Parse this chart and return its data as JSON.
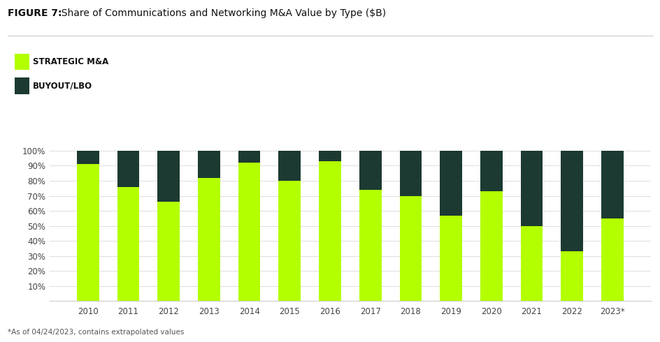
{
  "title_bold": "FIGURE 7:",
  "title_regular": "  Share of Communications and Networking M&A Value by Type ($B)",
  "years": [
    "2010",
    "2011",
    "2012",
    "2013",
    "2014",
    "2015",
    "2016",
    "2017",
    "2018",
    "2019",
    "2020",
    "2021",
    "2022",
    "2023*"
  ],
  "strategic_ma": [
    91,
    76,
    66,
    82,
    92,
    80,
    93,
    74,
    70,
    57,
    73,
    50,
    33,
    55
  ],
  "buyout_lbo": [
    9,
    24,
    34,
    18,
    8,
    20,
    7,
    26,
    30,
    43,
    27,
    50,
    67,
    45
  ],
  "strategic_color": "#b3ff00",
  "buyout_color": "#1c3a32",
  "background_color": "#ffffff",
  "legend_strategic": "STRATEGIC M&A",
  "legend_buyout": "BUYOUT/LBO",
  "ylabel_ticks": [
    "10%",
    "20%",
    "30%",
    "40%",
    "50%",
    "60%",
    "70%",
    "80%",
    "90%",
    "100%"
  ],
  "footnote": "*As of 04/24/2023, contains extrapolated values",
  "bar_width": 0.55
}
